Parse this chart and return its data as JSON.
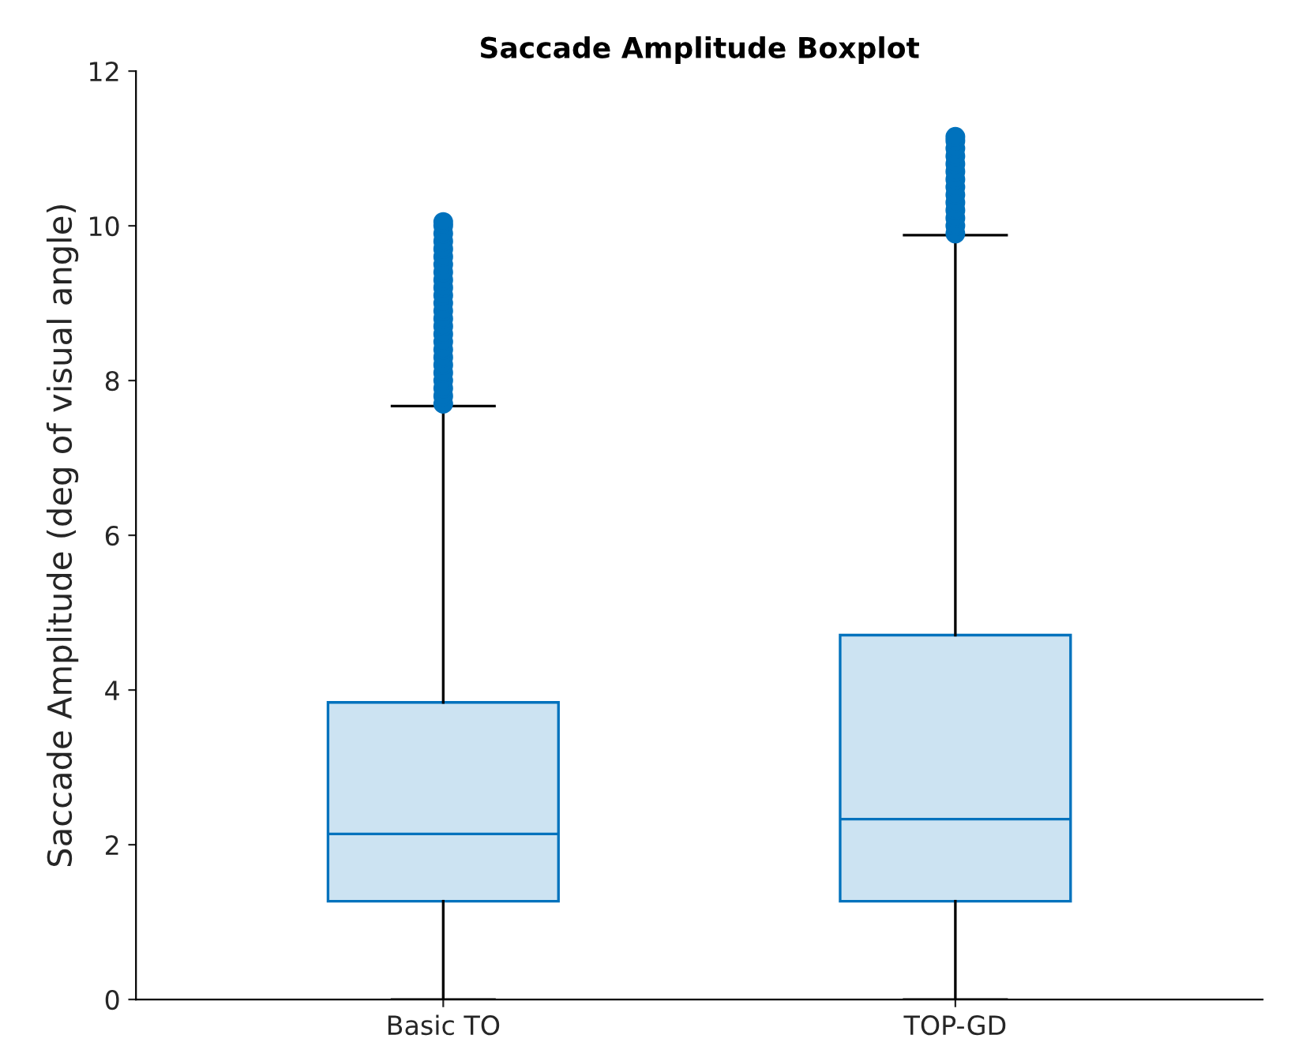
{
  "chart_data": {
    "type": "box",
    "title": "Saccade Amplitude Boxplot",
    "ylabel": "Saccade Amplitude (deg of visual angle)",
    "categories": [
      "Basic TO",
      "TOP-GD"
    ],
    "color": "#0072bd",
    "ylim": [
      0,
      12
    ],
    "yticks": [
      0,
      2,
      4,
      6,
      8,
      10,
      12
    ],
    "grid": false,
    "boxes": [
      {
        "low": 0,
        "q1": 1.27,
        "median": 2.14,
        "q3": 3.84,
        "high": 7.67,
        "outliers": [
          7.7,
          7.8,
          7.9,
          8.0,
          8.1,
          8.2,
          8.3,
          8.4,
          8.5,
          8.6,
          8.7,
          8.8,
          8.9,
          9.0,
          9.1,
          9.2,
          9.3,
          9.4,
          9.5,
          9.6,
          9.7,
          9.8,
          9.9,
          10.0,
          10.05
        ]
      },
      {
        "low": 0,
        "q1": 1.27,
        "median": 2.33,
        "q3": 4.71,
        "high": 9.88,
        "outliers": [
          9.9,
          10.0,
          10.1,
          10.2,
          10.3,
          10.4,
          10.5,
          10.6,
          10.7,
          10.8,
          10.9,
          11.0,
          11.1,
          11.15
        ]
      }
    ]
  }
}
